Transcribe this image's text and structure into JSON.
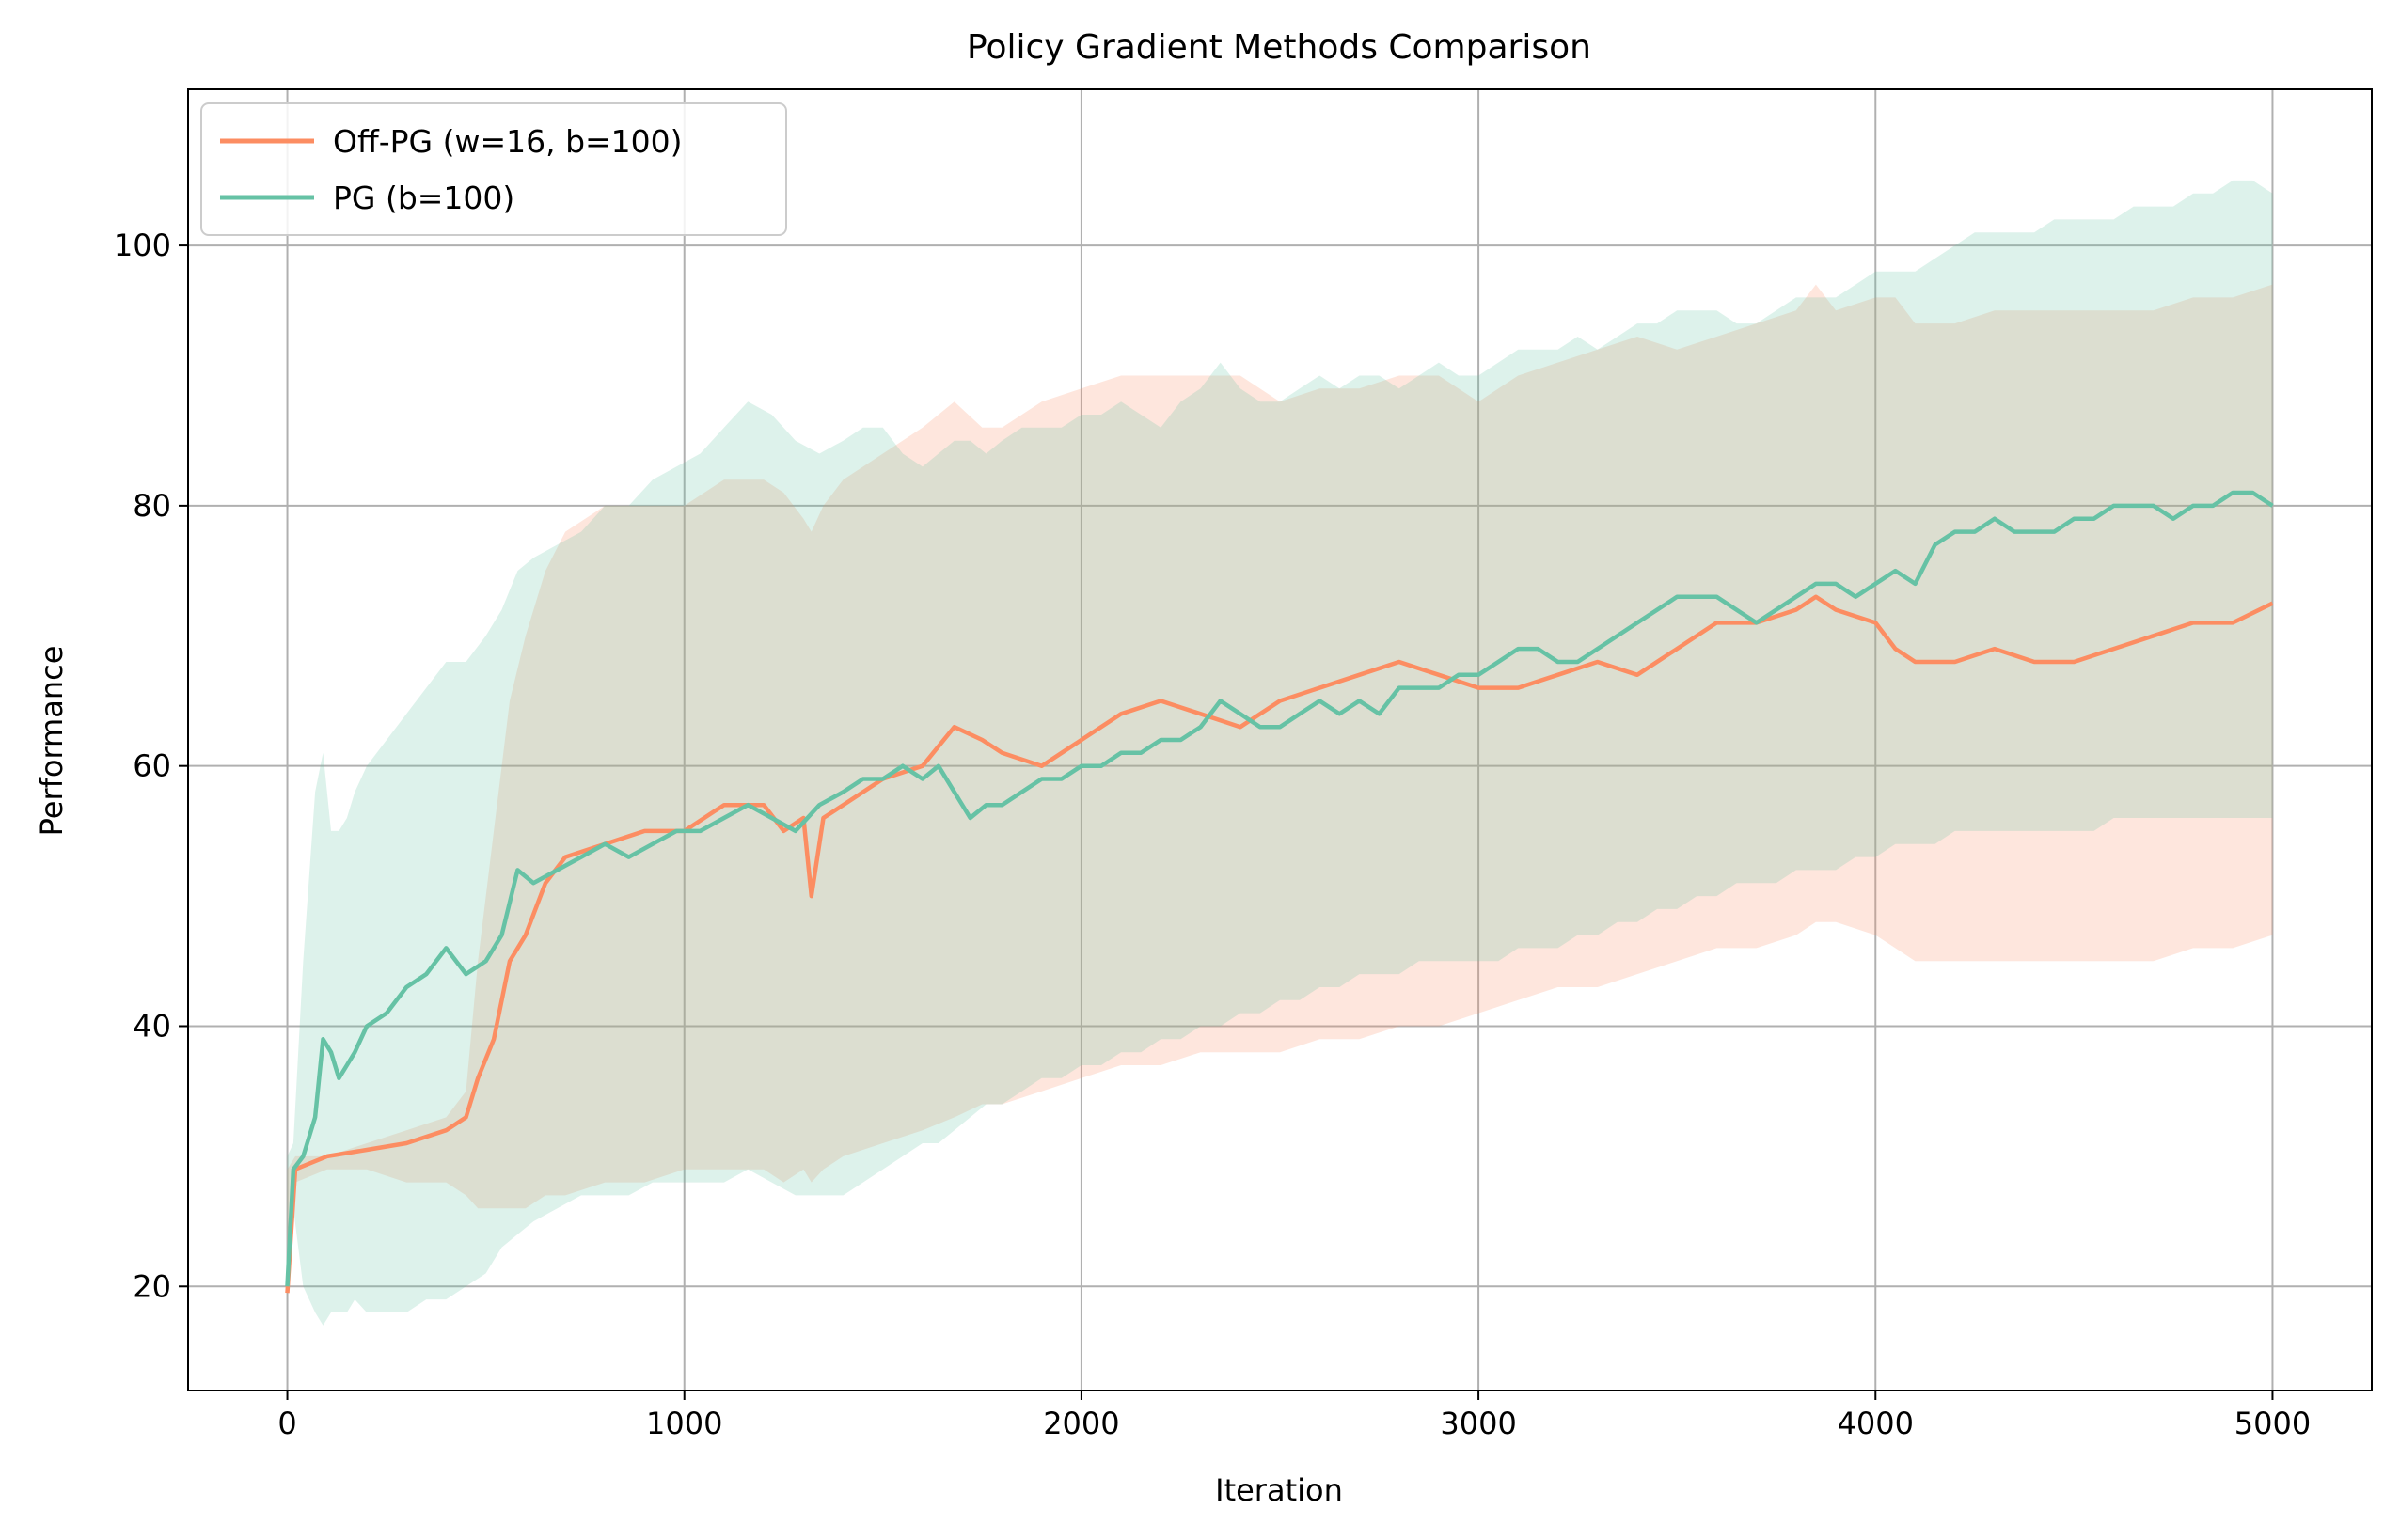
{
  "chart_data": {
    "type": "line",
    "title": "Policy Gradient Methods Comparison",
    "xlabel": "Iteration",
    "ylabel": "Performance",
    "xlim": [
      -250,
      5250
    ],
    "ylim": [
      12,
      112
    ],
    "xticks": [
      0,
      1000,
      2000,
      3000,
      4000,
      5000
    ],
    "yticks": [
      20,
      40,
      60,
      80,
      100
    ],
    "grid": true,
    "legend_position": "upper-left",
    "series": [
      {
        "name": "Off-PG (w=16, b=100)",
        "color": "#fc8d62",
        "x": [
          0,
          20,
          100,
          200,
          300,
          400,
          450,
          480,
          520,
          560,
          600,
          650,
          700,
          800,
          900,
          1000,
          1100,
          1200,
          1250,
          1300,
          1320,
          1350,
          1400,
          1500,
          1600,
          1680,
          1750,
          1800,
          1900,
          2000,
          2100,
          2200,
          2300,
          2400,
          2500,
          2600,
          2700,
          2800,
          2900,
          3000,
          3100,
          3200,
          3300,
          3400,
          3500,
          3600,
          3700,
          3800,
          3850,
          3900,
          4000,
          4050,
          4100,
          4200,
          4300,
          4400,
          4500,
          4600,
          4700,
          4800,
          4900,
          5000
        ],
        "y": [
          19.5,
          29,
          30,
          30.5,
          31,
          32,
          33,
          36,
          39,
          45,
          47,
          51,
          53,
          54,
          55,
          55,
          57,
          57,
          55,
          56,
          50,
          56,
          57,
          59,
          60,
          63,
          62,
          61,
          60,
          62,
          64,
          65,
          64,
          63,
          65,
          66,
          67,
          68,
          67,
          66,
          66,
          67,
          68,
          67,
          69,
          71,
          71,
          72,
          73,
          72,
          71,
          69,
          68,
          68,
          69,
          68,
          68,
          69,
          70,
          71,
          71,
          72.5
        ],
        "upper": [
          29,
          30,
          30,
          31,
          32,
          33,
          35,
          45,
          55,
          65,
          70,
          75,
          78,
          80,
          80,
          80,
          82,
          82,
          81,
          79,
          78,
          80,
          82,
          84,
          86,
          88,
          86,
          86,
          88,
          89,
          90,
          90,
          90,
          90,
          88,
          89,
          89,
          90,
          90,
          88,
          90,
          91,
          92,
          93,
          92,
          93,
          94,
          95,
          97,
          95,
          96,
          96,
          94,
          94,
          95,
          95,
          95,
          95,
          95,
          96,
          96,
          97
        ],
        "lower": [
          19,
          28,
          29,
          29,
          28,
          28,
          27,
          26,
          26,
          26,
          26,
          27,
          27,
          28,
          28,
          29,
          29,
          29,
          28,
          29,
          28,
          29,
          30,
          31,
          32,
          33,
          34,
          34,
          35,
          36,
          37,
          37,
          38,
          38,
          38,
          39,
          39,
          40,
          40,
          41,
          42,
          43,
          43,
          44,
          45,
          46,
          46,
          47,
          48,
          48,
          47,
          46,
          45,
          45,
          45,
          45,
          45,
          45,
          45,
          46,
          46,
          47
        ]
      },
      {
        "name": "PG (b=100)",
        "color": "#66c2a5",
        "x": [
          0,
          15,
          40,
          70,
          90,
          110,
          130,
          150,
          170,
          200,
          250,
          300,
          350,
          400,
          450,
          500,
          540,
          580,
          620,
          680,
          740,
          800,
          860,
          920,
          980,
          1040,
          1100,
          1160,
          1220,
          1280,
          1340,
          1400,
          1450,
          1500,
          1550,
          1600,
          1640,
          1680,
          1720,
          1760,
          1800,
          1850,
          1900,
          1950,
          2000,
          2050,
          2100,
          2150,
          2200,
          2250,
          2300,
          2350,
          2400,
          2450,
          2500,
          2550,
          2600,
          2650,
          2700,
          2750,
          2800,
          2850,
          2900,
          2950,
          3000,
          3050,
          3100,
          3150,
          3200,
          3250,
          3300,
          3350,
          3400,
          3450,
          3500,
          3550,
          3600,
          3650,
          3700,
          3750,
          3800,
          3850,
          3900,
          3950,
          4000,
          4050,
          4100,
          4150,
          4200,
          4250,
          4300,
          4350,
          4400,
          4450,
          4500,
          4550,
          4600,
          4650,
          4700,
          4750,
          4800,
          4850,
          4900,
          4950,
          5000
        ],
        "y": [
          20,
          29,
          30,
          33,
          39,
          38,
          36,
          37,
          38,
          40,
          41,
          43,
          44,
          46,
          44,
          45,
          47,
          52,
          51,
          52,
          53,
          54,
          53,
          54,
          55,
          55,
          56,
          57,
          56,
          55,
          57,
          58,
          59,
          59,
          60,
          59,
          60,
          58,
          56,
          57,
          57,
          58,
          59,
          59,
          60,
          60,
          61,
          61,
          62,
          62,
          63,
          65,
          64,
          63,
          63,
          64,
          65,
          64,
          65,
          64,
          66,
          66,
          66,
          67,
          67,
          68,
          69,
          69,
          68,
          68,
          69,
          70,
          71,
          72,
          73,
          73,
          73,
          72,
          71,
          72,
          73,
          74,
          74,
          73,
          74,
          75,
          74,
          77,
          78,
          78,
          79,
          78,
          78,
          78,
          79,
          79,
          80,
          80,
          80,
          79,
          80,
          80,
          81,
          81,
          80
        ],
        "upper": [
          30,
          31,
          45,
          58,
          61,
          55,
          55,
          56,
          58,
          60,
          62,
          64,
          66,
          68,
          68,
          70,
          72,
          75,
          76,
          77,
          78,
          80,
          80,
          82,
          83,
          84,
          86,
          88,
          87,
          85,
          84,
          85,
          86,
          86,
          84,
          83,
          84,
          85,
          85,
          84,
          85,
          86,
          86,
          86,
          87,
          87,
          88,
          87,
          86,
          88,
          89,
          91,
          89,
          88,
          88,
          89,
          90,
          89,
          90,
          90,
          89,
          90,
          91,
          90,
          90,
          91,
          92,
          92,
          92,
          93,
          92,
          93,
          94,
          94,
          95,
          95,
          95,
          94,
          94,
          95,
          96,
          96,
          96,
          97,
          98,
          98,
          98,
          99,
          100,
          101,
          101,
          101,
          101,
          102,
          102,
          102,
          102,
          103,
          103,
          103,
          104,
          104,
          105,
          105,
          104
        ],
        "lower": [
          19,
          26,
          20,
          18,
          17,
          18,
          18,
          18,
          19,
          18,
          18,
          18,
          19,
          19,
          20,
          21,
          23,
          24,
          25,
          26,
          27,
          27,
          27,
          28,
          28,
          28,
          28,
          29,
          28,
          27,
          27,
          27,
          28,
          29,
          30,
          31,
          31,
          32,
          33,
          34,
          34,
          35,
          36,
          36,
          37,
          37,
          38,
          38,
          39,
          39,
          40,
          40,
          41,
          41,
          42,
          42,
          43,
          43,
          44,
          44,
          44,
          45,
          45,
          45,
          45,
          45,
          46,
          46,
          46,
          47,
          47,
          48,
          48,
          49,
          49,
          50,
          50,
          51,
          51,
          51,
          52,
          52,
          52,
          53,
          53,
          54,
          54,
          54,
          55,
          55,
          55,
          55,
          55,
          55,
          55,
          55,
          56,
          56,
          56,
          56,
          56,
          56,
          56,
          56,
          56
        ]
      }
    ]
  }
}
